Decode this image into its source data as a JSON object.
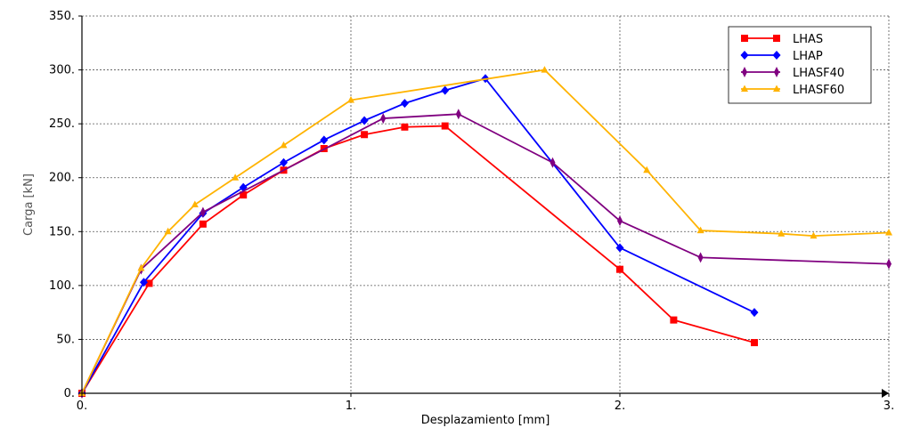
{
  "chart_data": {
    "type": "line",
    "title": "",
    "xlabel": "Desplazamiento [mm]",
    "ylabel": "Carga [kN]",
    "xlim": [
      0,
      3
    ],
    "ylim": [
      0,
      350
    ],
    "xticks": [
      0,
      1,
      2,
      3
    ],
    "xtick_labels": [
      "0.",
      "1.",
      "2.",
      "3."
    ],
    "yticks": [
      0,
      50,
      100,
      150,
      200,
      250,
      300,
      350
    ],
    "ytick_labels": [
      "0.",
      "50.",
      "100.",
      "150.",
      "200.",
      "250.",
      "300.",
      "350."
    ],
    "grid": true,
    "legend_position": "top-right",
    "series": [
      {
        "name": "LHAS",
        "color": "#ff0000",
        "marker": "square",
        "x": [
          0,
          0.25,
          0.45,
          0.6,
          0.75,
          0.9,
          1.05,
          1.2,
          1.35,
          2.0,
          2.2,
          2.5
        ],
        "y": [
          0,
          102,
          157,
          184,
          207,
          227,
          240,
          247,
          248,
          115,
          68,
          47
        ]
      },
      {
        "name": "LHAP",
        "color": "#0000ff",
        "marker": "diamond",
        "x": [
          0,
          0.23,
          0.45,
          0.6,
          0.75,
          0.9,
          1.05,
          1.2,
          1.35,
          1.5,
          2.0,
          2.5
        ],
        "y": [
          0,
          103,
          167,
          191,
          214,
          235,
          253,
          269,
          281,
          292,
          135,
          75
        ]
      },
      {
        "name": "LHASF40",
        "color": "#800080",
        "marker": "thin-diamond",
        "x": [
          0,
          0.22,
          0.45,
          1.12,
          1.4,
          1.75,
          2.0,
          2.3,
          3.0
        ],
        "y": [
          0,
          115,
          168,
          255,
          259,
          214,
          160,
          126,
          120
        ]
      },
      {
        "name": "LHASF60",
        "color": "#ffb300",
        "marker": "triangle",
        "x": [
          0,
          0.22,
          0.32,
          0.42,
          0.57,
          0.75,
          1.0,
          1.72,
          2.1,
          2.3,
          2.6,
          2.72,
          3.0
        ],
        "y": [
          0,
          116,
          150,
          175,
          200,
          230,
          272,
          300,
          207,
          151,
          148,
          146,
          149
        ]
      }
    ]
  }
}
